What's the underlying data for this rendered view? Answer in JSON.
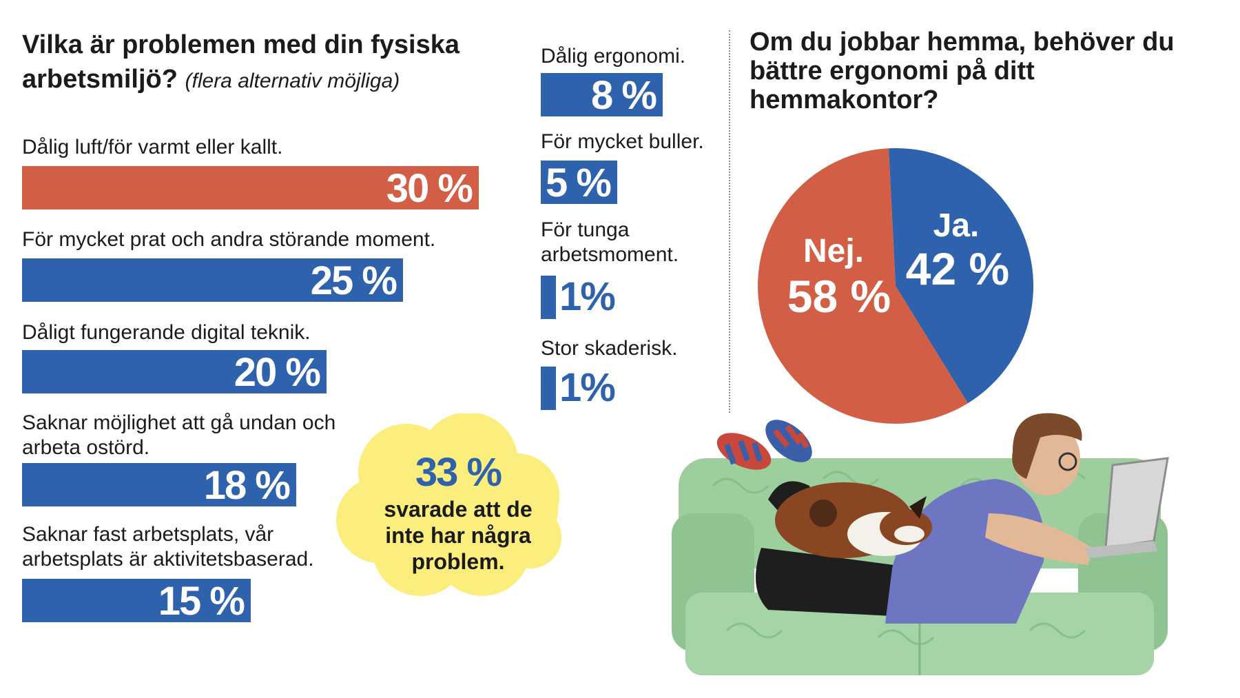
{
  "colors": {
    "blue": "#2f62ad",
    "orange": "#d15e45",
    "yellow": "#fbee7c",
    "sofa": "#9dcf9e"
  },
  "left": {
    "title": "Vilka är problemen med din fysiska arbetsmiljö?",
    "subtitle": "(flera alternativ möjliga)"
  },
  "cloud": {
    "value": "33 %",
    "text": "svarade att de inte har några problem."
  },
  "right": {
    "title": "Om du jobbar hemma, behöver du bättre ergonomi på ditt hemmakontor?"
  },
  "chart_data": [
    {
      "type": "bar",
      "orientation": "horizontal",
      "categories": [
        "Dålig luft/för varmt eller kallt.",
        "För mycket prat och andra störande moment.",
        "Dåligt fungerande digital teknik.",
        "Saknar möjlighet att gå undan och arbeta ostörd.",
        "Saknar fast arbetsplats, vår arbetsplats är aktivitetsbaserad.",
        "Dålig ergonomi.",
        "För mycket buller.",
        "För tunga arbetsmoment.",
        "Stor skaderisk."
      ],
      "values": [
        30,
        25,
        20,
        18,
        15,
        8,
        5,
        1,
        1
      ],
      "value_labels": [
        "30 %",
        "25 %",
        "20 %",
        "18 %",
        "15 %",
        "8 %",
        "5 %",
        "1%",
        "1%"
      ],
      "highlight_color": "#d15e45",
      "bar_color": "#2f62ad"
    },
    {
      "type": "pie",
      "labels": [
        "Ja.",
        "Nej."
      ],
      "values": [
        42,
        58
      ],
      "value_labels": [
        "42 %",
        "58 %"
      ],
      "colors": [
        "#2f62ad",
        "#d15e45"
      ]
    }
  ]
}
